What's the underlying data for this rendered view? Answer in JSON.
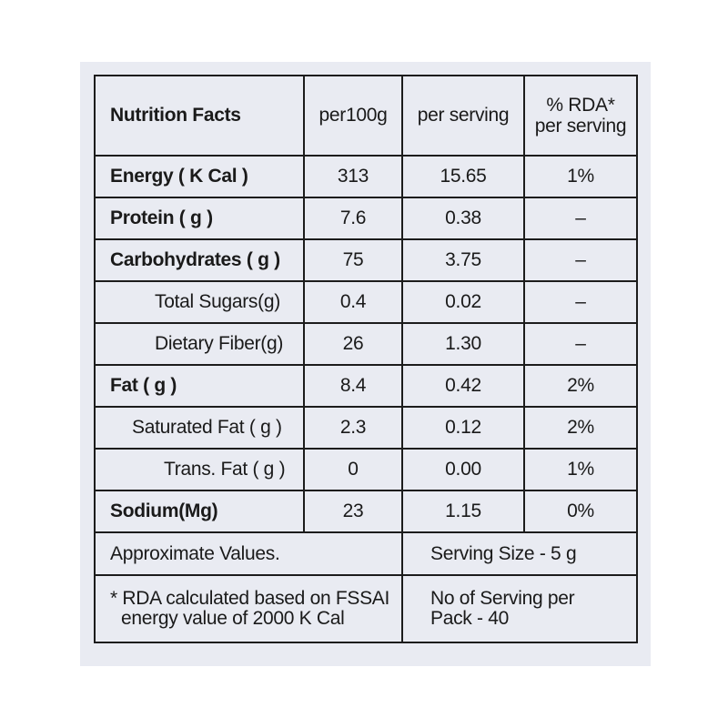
{
  "header": {
    "title": "Nutrition Facts",
    "col_per100g": "per100g",
    "col_per_serving": "per serving",
    "col_rda_line1": "% RDA*",
    "col_rda_line2": "per serving"
  },
  "rows": [
    {
      "name": "Energy ( K Cal )",
      "per100g": "313",
      "serving": "15.65",
      "rda": "1%"
    },
    {
      "name": "Protein ( g )",
      "per100g": "7.6",
      "serving": "0.38",
      "rda": "–"
    },
    {
      "name": "Carbohydrates ( g )",
      "per100g": "75",
      "serving": "3.75",
      "rda": "–"
    },
    {
      "name": "Total Sugars(g)",
      "per100g": "0.4",
      "serving": "0.02",
      "rda": "–"
    },
    {
      "name": "Dietary Fiber(g)",
      "per100g": "26",
      "serving": "1.30",
      "rda": "–"
    },
    {
      "name": "Fat ( g )",
      "per100g": "8.4",
      "serving": "0.42",
      "rda": "2%"
    },
    {
      "name": "Saturated Fat ( g )",
      "per100g": "2.3",
      "serving": "0.12",
      "rda": "2%"
    },
    {
      "name": "Trans. Fat ( g )",
      "per100g": "0",
      "serving": "0.00",
      "rda": "1%"
    },
    {
      "name": "Sodium(Mg)",
      "per100g": "23",
      "serving": "1.15",
      "rda": "0%"
    }
  ],
  "footer": {
    "approx": "Approximate Values.",
    "serving_size": "Serving Size - 5 g",
    "rda_note_line1": "* RDA calculated based on FSSAI",
    "rda_note_line2": "energy value of 2000 K Cal",
    "servings_line1": "No of Serving per",
    "servings_line2": "Pack - 40"
  }
}
